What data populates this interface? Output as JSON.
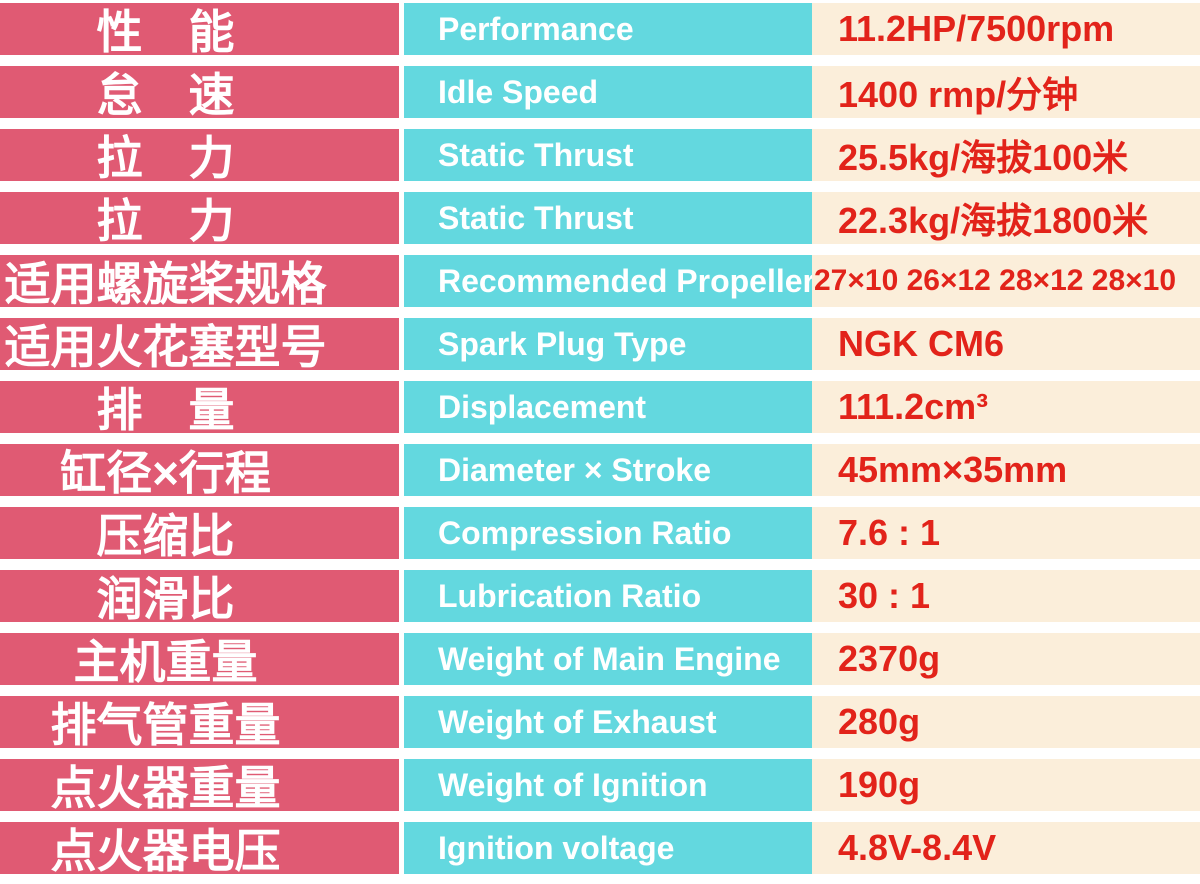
{
  "table": {
    "colors": {
      "pink": "#e05a73",
      "cyan": "#63d8df",
      "cream": "#fbeeda",
      "red": "#e2231a",
      "white": "#ffffff",
      "page_bg": "#ffffff"
    },
    "rows": [
      {
        "zh": "性　能",
        "en": "Performance",
        "value": "11.2HP/7500rpm"
      },
      {
        "zh": "怠　速",
        "en": "Idle Speed",
        "value": "1400 rmp/分钟"
      },
      {
        "zh": "拉　力",
        "en": "Static Thrust",
        "value": "25.5kg/海拔100米"
      },
      {
        "zh": "拉　力",
        "en": "Static Thrust",
        "value": "22.3kg/海拔1800米"
      },
      {
        "zh": "适用螺旋桨规格",
        "en": "Recommended Propeller",
        "value": "27×10 26×12 28×12 28×10"
      },
      {
        "zh": "适用火花塞型号",
        "en": "Spark Plug Type",
        "value": "NGK CM6"
      },
      {
        "zh": "排　量",
        "en": "Displacement",
        "value": "111.2cm³"
      },
      {
        "zh": "缸径×行程",
        "en": "Diameter × Stroke",
        "value": "45mm×35mm"
      },
      {
        "zh": "压缩比",
        "en": "Compression Ratio",
        "value": "7.6 : 1"
      },
      {
        "zh": "润滑比",
        "en": "Lubrication Ratio",
        "value": "30 : 1"
      },
      {
        "zh": "主机重量",
        "en": "Weight of Main Engine",
        "value": "2370g"
      },
      {
        "zh": "排气管重量",
        "en": "Weight of Exhaust",
        "value": "280g"
      },
      {
        "zh": "点火器重量",
        "en": "Weight of Ignition",
        "value": "190g"
      },
      {
        "zh": "点火器电压",
        "en": "Ignition voltage",
        "value": "4.8V-8.4V"
      }
    ]
  }
}
